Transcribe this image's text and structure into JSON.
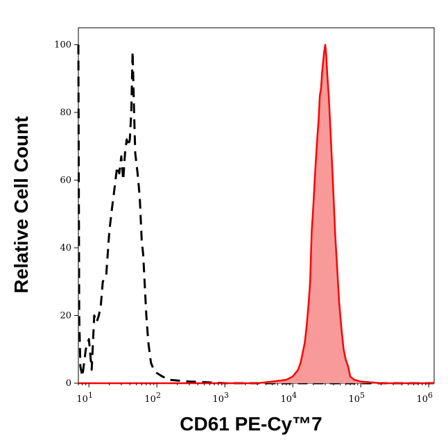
{
  "chart_data": {
    "type": "area",
    "xlabel": "CD61 PE-Cy™7",
    "ylabel": "Relative Cell Count",
    "x_scale": "log",
    "xlim": [
      7,
      1200000
    ],
    "ylim": [
      0,
      105
    ],
    "x_ticks": [
      {
        "value": 10,
        "base": "10",
        "exp": "1"
      },
      {
        "value": 100,
        "base": "10",
        "exp": "2"
      },
      {
        "value": 1000,
        "base": "10",
        "exp": "3"
      },
      {
        "value": 10000,
        "base": "10",
        "exp": "4"
      },
      {
        "value": 100000,
        "base": "10",
        "exp": "5"
      },
      {
        "value": 1000000,
        "base": "10",
        "exp": "6"
      }
    ],
    "y_ticks": [
      0,
      20,
      40,
      60,
      80,
      100
    ],
    "grid": false,
    "legend": "none",
    "series": [
      {
        "color": "#000000",
        "style": "dashed",
        "fill": null,
        "points": [
          [
            7,
            100
          ],
          [
            7.1,
            60
          ],
          [
            7.2,
            20
          ],
          [
            7.5,
            5
          ],
          [
            8,
            2
          ],
          [
            8.5,
            6
          ],
          [
            9,
            10
          ],
          [
            10,
            13
          ],
          [
            11,
            4
          ],
          [
            12,
            20
          ],
          [
            13,
            18
          ],
          [
            14,
            20
          ],
          [
            15,
            23
          ],
          [
            16,
            30
          ],
          [
            18,
            32
          ],
          [
            20,
            45
          ],
          [
            22,
            52
          ],
          [
            24,
            58
          ],
          [
            26,
            64
          ],
          [
            28,
            62
          ],
          [
            30,
            67
          ],
          [
            32,
            60
          ],
          [
            34,
            68
          ],
          [
            36,
            72
          ],
          [
            38,
            70
          ],
          [
            40,
            72
          ],
          [
            42,
            80
          ],
          [
            44,
            98
          ],
          [
            46,
            82
          ],
          [
            48,
            68
          ],
          [
            52,
            62
          ],
          [
            56,
            55
          ],
          [
            60,
            42
          ],
          [
            63,
            38
          ],
          [
            66,
            30
          ],
          [
            70,
            20
          ],
          [
            75,
            12
          ],
          [
            82,
            6
          ],
          [
            90,
            4
          ],
          [
            100,
            3
          ],
          [
            120,
            2
          ],
          [
            150,
            1
          ],
          [
            200,
            0.8
          ],
          [
            300,
            0.5
          ],
          [
            500,
            0.3
          ],
          [
            1000,
            0
          ],
          [
            1200000,
            0
          ]
        ]
      },
      {
        "color": "#ff0000",
        "style": "solid",
        "fill": "#f99a9a",
        "points": [
          [
            7,
            0
          ],
          [
            3000,
            0
          ],
          [
            5000,
            0.5
          ],
          [
            8000,
            1
          ],
          [
            10000,
            2
          ],
          [
            12000,
            4
          ],
          [
            13000,
            6
          ],
          [
            14000,
            9
          ],
          [
            15000,
            12
          ],
          [
            16000,
            17
          ],
          [
            17000,
            23
          ],
          [
            18000,
            30
          ],
          [
            19000,
            45
          ],
          [
            20000,
            52
          ],
          [
            21000,
            60
          ],
          [
            22000,
            67
          ],
          [
            23000,
            73
          ],
          [
            24000,
            78
          ],
          [
            25000,
            85
          ],
          [
            26000,
            87
          ],
          [
            27000,
            92
          ],
          [
            28000,
            95
          ],
          [
            29000,
            98
          ],
          [
            30000,
            100
          ],
          [
            31000,
            97
          ],
          [
            32000,
            92
          ],
          [
            33000,
            88
          ],
          [
            34000,
            84
          ],
          [
            36000,
            74
          ],
          [
            38000,
            64
          ],
          [
            40000,
            54
          ],
          [
            42000,
            44
          ],
          [
            45000,
            34
          ],
          [
            48000,
            24
          ],
          [
            52000,
            16
          ],
          [
            56000,
            10
          ],
          [
            60000,
            7
          ],
          [
            65000,
            5
          ],
          [
            70000,
            2
          ],
          [
            80000,
            1
          ],
          [
            100000,
            0.5
          ],
          [
            200000,
            0
          ],
          [
            1200000,
            0
          ]
        ]
      }
    ]
  }
}
